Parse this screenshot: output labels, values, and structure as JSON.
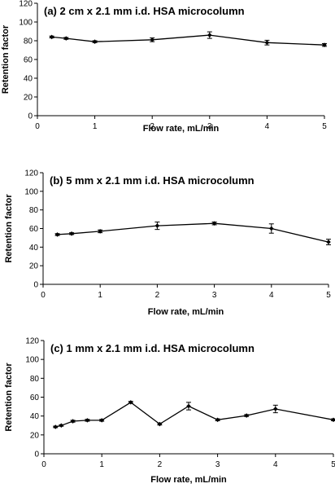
{
  "chart_data": [
    {
      "type": "line",
      "title": "(a) 2 cm x 2.1 mm i.d. HSA microcolumn",
      "xlabel": "Flow rate, mL/min",
      "ylabel": "Retention factor",
      "xlim": [
        0,
        5
      ],
      "ylim": [
        0,
        120
      ],
      "xticks": [
        "0",
        "1",
        "2",
        "3",
        "4",
        "5"
      ],
      "yticks": [
        "0",
        "20",
        "40",
        "60",
        "80",
        "100",
        "120"
      ],
      "grid": false,
      "x": [
        0.25,
        0.5,
        1,
        2,
        3,
        4,
        5
      ],
      "y": [
        84,
        82.5,
        79,
        81,
        86,
        78,
        75.5
      ],
      "err": [
        1,
        1,
        1,
        2,
        3.5,
        2.5,
        1.5
      ]
    },
    {
      "type": "line",
      "title": "(b) 5 mm x 2.1 mm i.d. HSA microcolumn",
      "xlabel": "Flow rate, mL/min",
      "ylabel": "Retention factor",
      "xlim": [
        0,
        5
      ],
      "ylim": [
        0,
        120
      ],
      "xticks": [
        "0",
        "1",
        "2",
        "3",
        "4",
        "5"
      ],
      "yticks": [
        "0",
        "20",
        "40",
        "60",
        "80",
        "100",
        "120"
      ],
      "grid": false,
      "x": [
        0.25,
        0.5,
        1,
        2,
        3,
        4,
        5
      ],
      "y": [
        53.5,
        54.5,
        57,
        63,
        65.5,
        60,
        45.5
      ],
      "err": [
        1,
        1,
        1.5,
        4,
        1.5,
        5,
        3
      ]
    },
    {
      "type": "line",
      "title": "(c) 1 mm x 2.1 mm i.d. HSA microcolumn",
      "xlabel": "Flow rate, mL/min",
      "ylabel": "Retention factor",
      "xlim": [
        0,
        5
      ],
      "ylim": [
        0,
        120
      ],
      "xticks": [
        "0",
        "1",
        "2",
        "3",
        "4",
        "5"
      ],
      "yticks": [
        "0",
        "20",
        "40",
        "60",
        "80",
        "100",
        "120"
      ],
      "grid": false,
      "x": [
        0.2,
        0.3,
        0.5,
        0.75,
        1,
        1.5,
        2,
        2.5,
        3,
        3.5,
        4,
        5
      ],
      "y": [
        28.5,
        30,
        34.5,
        35.5,
        35.5,
        54.5,
        31.5,
        50.5,
        36,
        40.5,
        47.5,
        36
      ],
      "err": [
        0.8,
        0.8,
        1,
        1,
        1,
        1,
        1,
        4,
        1,
        1,
        4,
        1
      ]
    }
  ]
}
